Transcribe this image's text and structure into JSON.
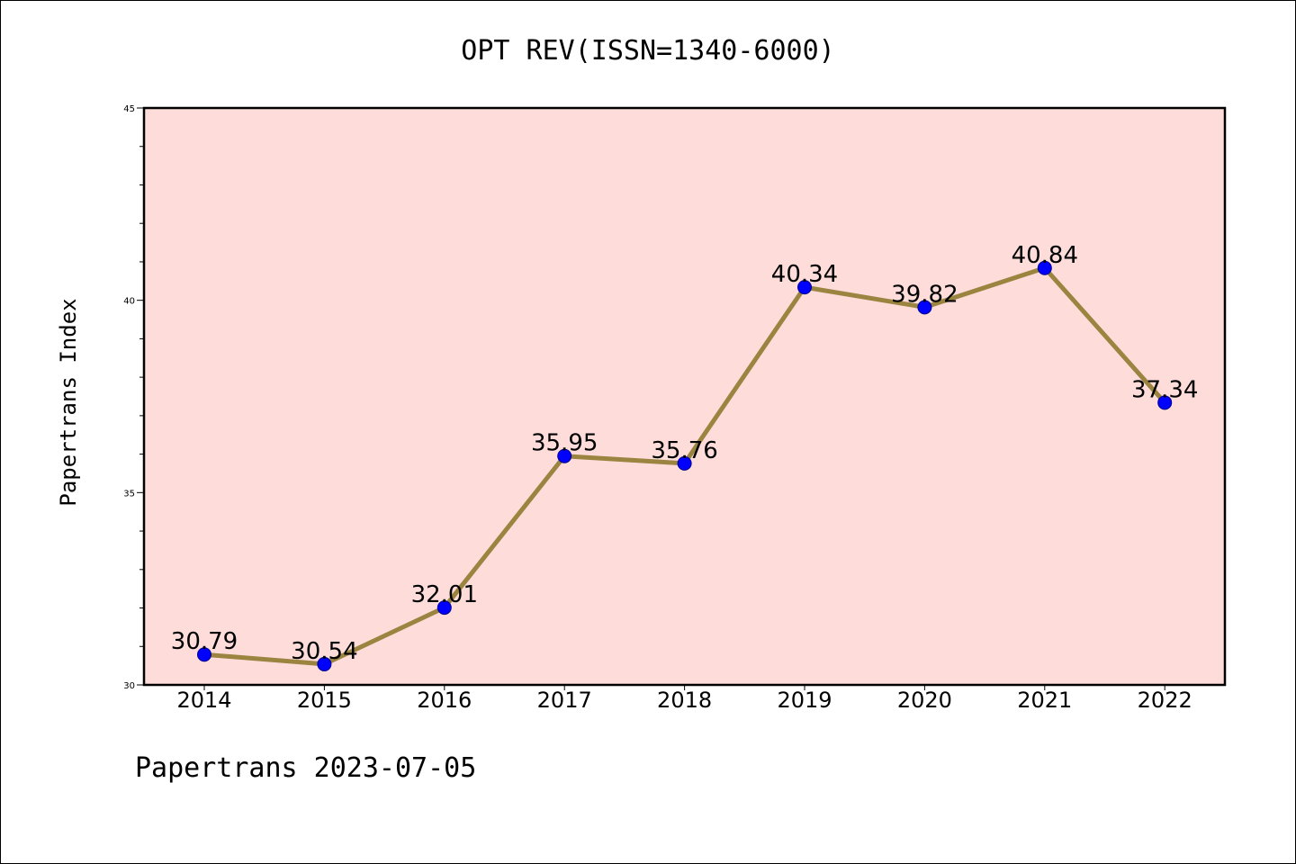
{
  "chart_data": {
    "type": "line",
    "title": "OPT REV(ISSN=1340-6000)",
    "ylabel": "Papertrans Index",
    "xlabel": "",
    "categories": [
      "2014",
      "2015",
      "2016",
      "2017",
      "2018",
      "2019",
      "2020",
      "2021",
      "2022"
    ],
    "series": [
      {
        "values": [
          30.79,
          30.54,
          32.01,
          35.95,
          35.76,
          40.34,
          39.82,
          40.84,
          37.34
        ],
        "labels": [
          "30.79",
          "30.54",
          "32.01",
          "35.95",
          "35.76",
          "40.34",
          "39.82",
          "40.84",
          "37.34"
        ]
      }
    ],
    "ylim": [
      30,
      45
    ],
    "yticks": [
      "30",
      "35",
      "40",
      "45"
    ],
    "grid": false,
    "legend": "none",
    "colors": {
      "plot_background": "#fddcda",
      "line": "#9a8440",
      "marker": "#0000ff",
      "marker_edge": "#00008b"
    }
  },
  "footer": {
    "text": "Papertrans 2023-07-05"
  }
}
